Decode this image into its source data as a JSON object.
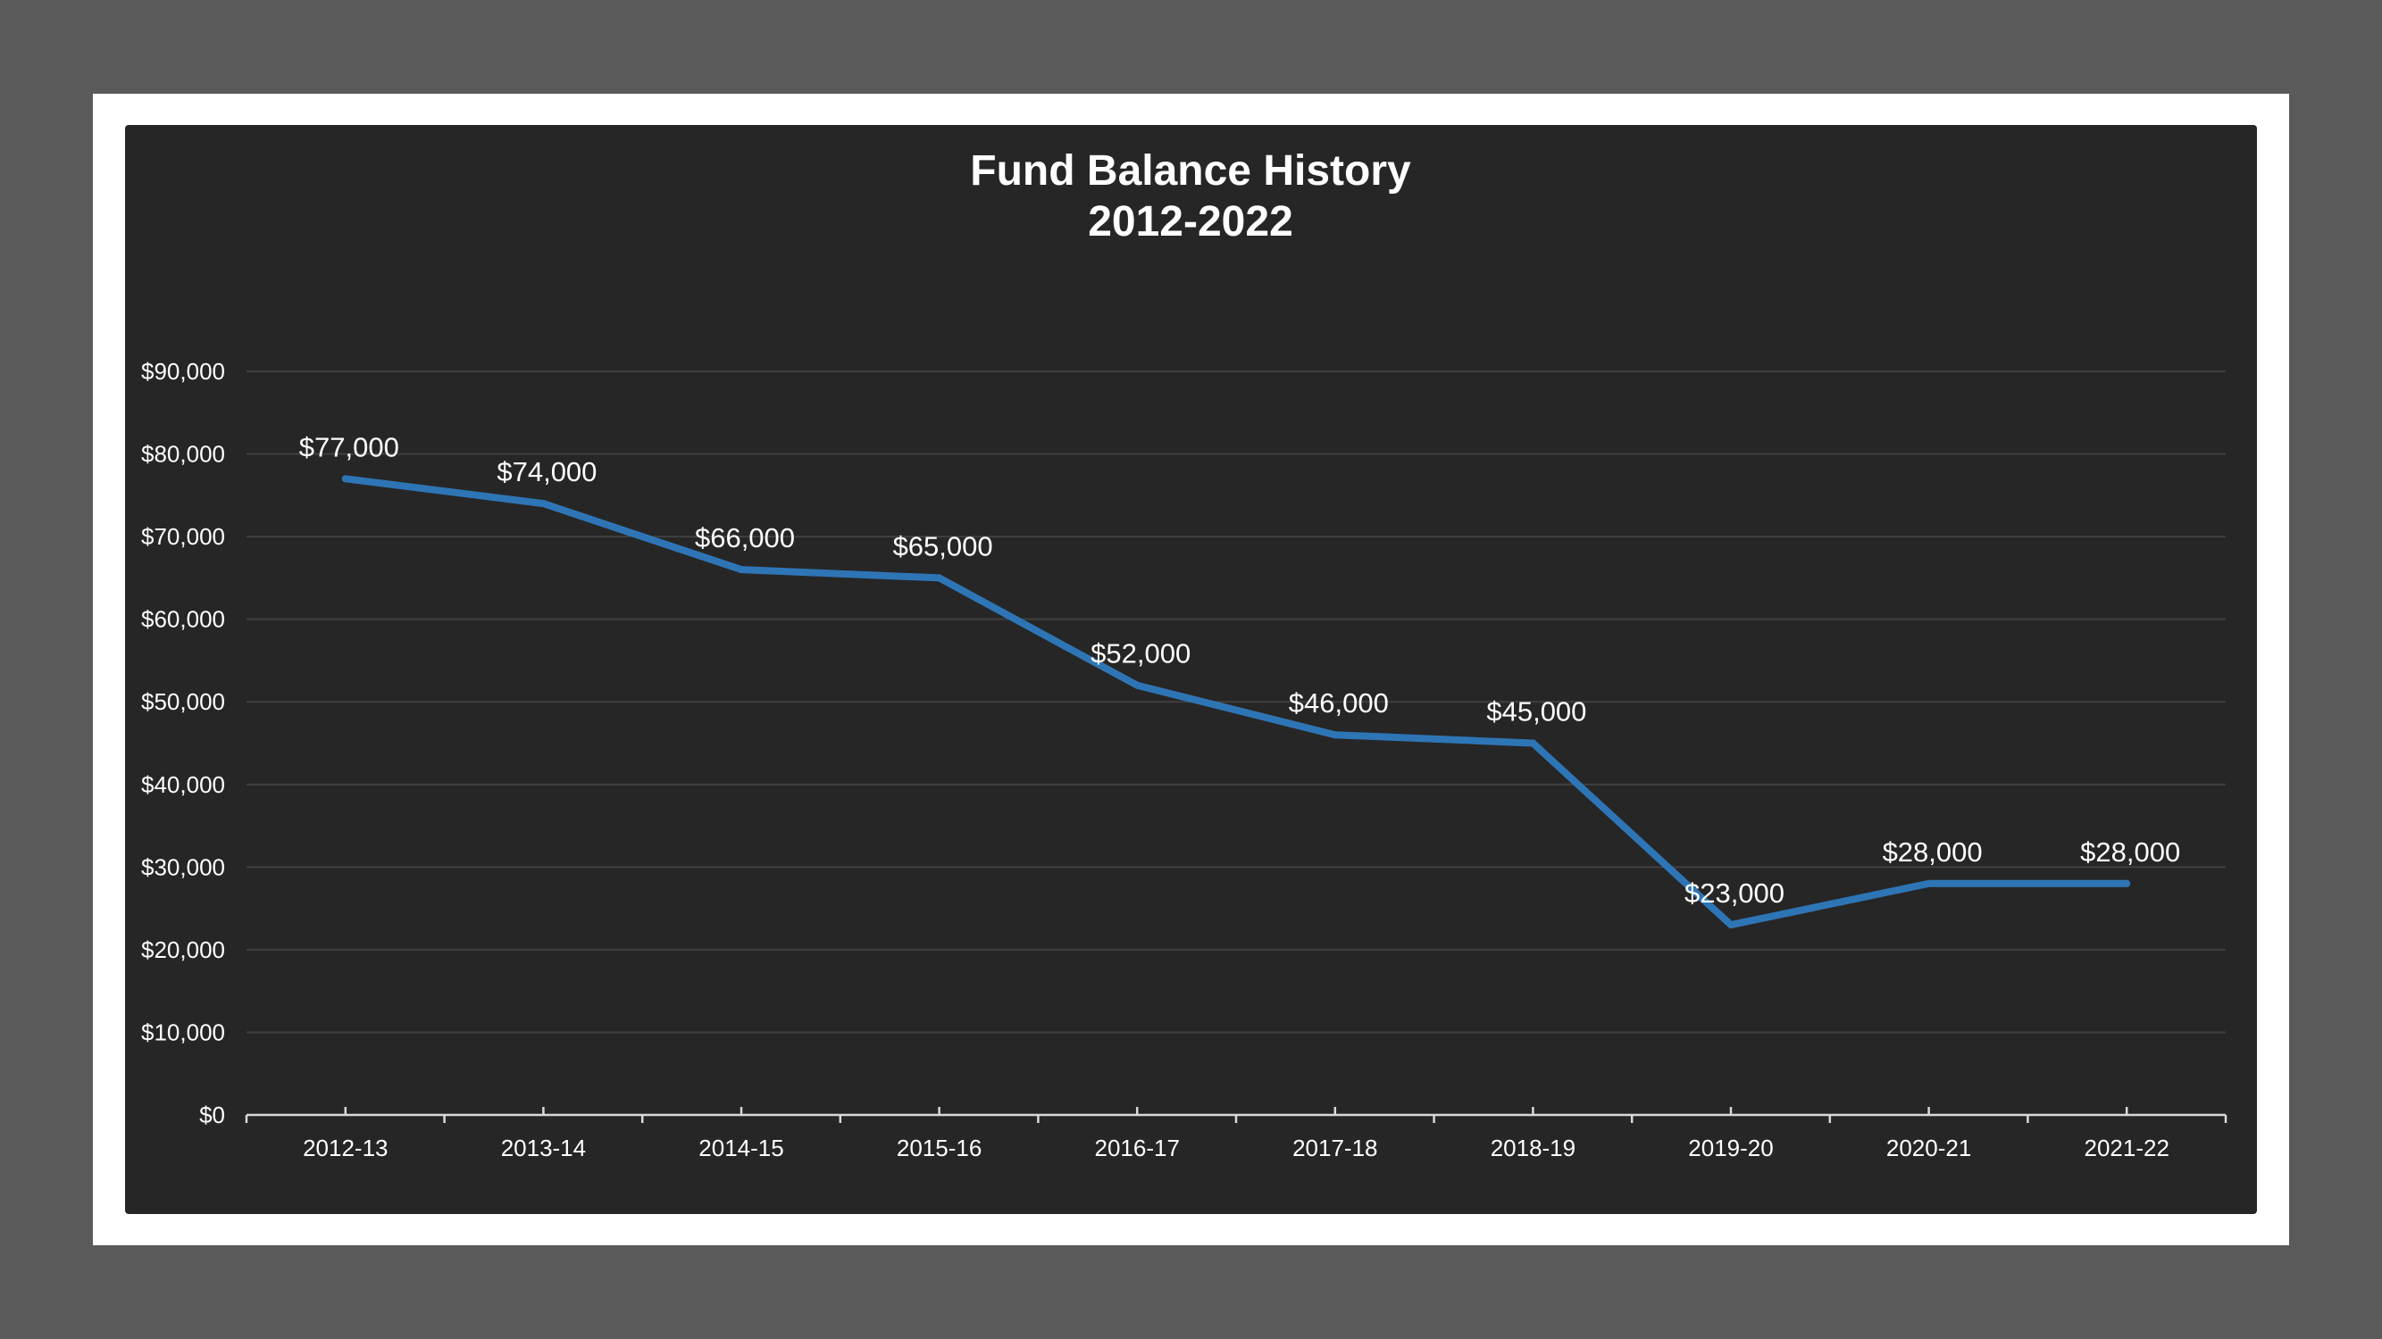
{
  "chart_data": {
    "type": "line",
    "title": "Fund Balance History",
    "subtitle": "2012-2022",
    "categories": [
      "2012-13",
      "2013-14",
      "2014-15",
      "2015-16",
      "2016-17",
      "2017-18",
      "2018-19",
      "2019-20",
      "2020-21",
      "2021-22"
    ],
    "values": [
      77000,
      74000,
      66000,
      65000,
      52000,
      46000,
      45000,
      23000,
      28000,
      28000
    ],
    "data_labels": [
      "$77,000",
      "$74,000",
      "$66,000",
      "$65,000",
      "$52,000",
      "$46,000",
      "$45,000",
      "$23,000",
      "$28,000",
      "$28,000"
    ],
    "y_ticks": [
      0,
      10000,
      20000,
      30000,
      40000,
      50000,
      60000,
      70000,
      80000,
      90000
    ],
    "y_tick_labels": [
      "$0",
      "$10,000",
      "$20,000",
      "$30,000",
      "$40,000",
      "$50,000",
      "$60,000",
      "$70,000",
      "$80,000",
      "$90,000"
    ],
    "ylim": [
      0,
      90000
    ],
    "grid": true,
    "legend": false,
    "colors": {
      "line": "#2e75b6",
      "background": "#262626",
      "gridline": "#404040",
      "axis": "#d9d9d9",
      "text": "#ffffff"
    }
  }
}
